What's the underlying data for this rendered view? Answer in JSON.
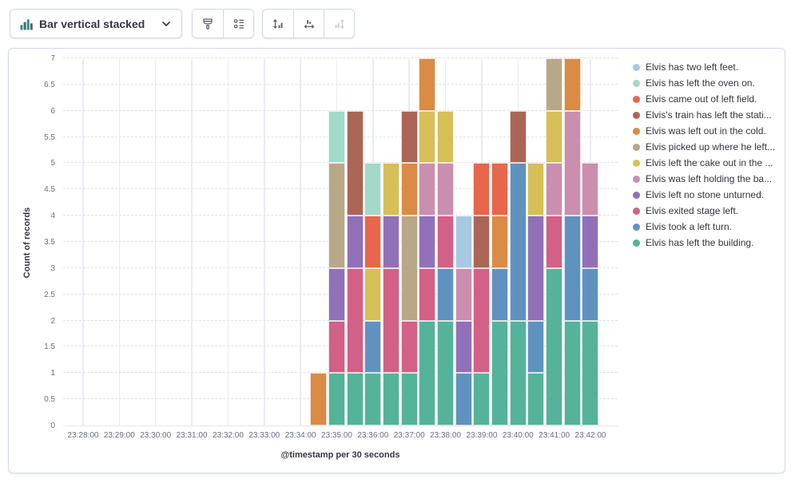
{
  "toolbar": {
    "chart_type_label": "Bar vertical stacked",
    "buttons": {
      "visual_options": "Visual options",
      "legend_settings": "Legend",
      "left_axis": "Left axis",
      "bottom_axis": "Bottom axis",
      "right_axis": "Right axis"
    }
  },
  "chart_data": {
    "type": "bar",
    "stacked": true,
    "xlabel": "@timestamp per 30 seconds",
    "ylabel": "Count of records",
    "ylim": [
      0,
      7
    ],
    "grid": true,
    "legend_position": "right",
    "y_ticks": [
      "0",
      "0.5",
      "1",
      "1.5",
      "2",
      "2.5",
      "3",
      "3.5",
      "4",
      "4.5",
      "5",
      "5.5",
      "6",
      "6.5",
      "7"
    ],
    "x_tick_labels": [
      "23:28:00",
      "23:29:00",
      "23:30:00",
      "23:31:00",
      "23:32:00",
      "23:33:00",
      "23:34:00",
      "23:35:00",
      "23:36:00",
      "23:37:00",
      "23:38:00",
      "23:39:00",
      "23:40:00",
      "23:41:00",
      "23:42:00"
    ],
    "buckets": [
      "23:34:30",
      "23:35:00",
      "23:35:30",
      "23:36:00",
      "23:36:30",
      "23:37:00",
      "23:37:30",
      "23:38:00",
      "23:38:30",
      "23:39:00",
      "23:39:30",
      "23:40:00",
      "23:40:30",
      "23:41:00",
      "23:41:30",
      "23:42:00"
    ],
    "series": [
      {
        "name": "Elvis has two left feet.",
        "color": "#A8C9E2",
        "values": [
          0,
          0,
          0,
          0,
          0,
          0,
          0,
          0,
          1,
          0,
          0,
          0,
          0,
          0,
          0,
          0
        ]
      },
      {
        "name": "Elvis has left the oven on.",
        "color": "#A2D9C8",
        "values": [
          0,
          1,
          0,
          1,
          0,
          0,
          0,
          0,
          0,
          0,
          0,
          0,
          0,
          0,
          0,
          0
        ]
      },
      {
        "name": "Elvis came out of left field.",
        "color": "#E7664C",
        "values": [
          0,
          0,
          0,
          1,
          0,
          0,
          0,
          0,
          0,
          1,
          1,
          0,
          0,
          0,
          0,
          0
        ]
      },
      {
        "name": "Elvis's train has left the stati...",
        "color": "#AA6556",
        "values": [
          0,
          0,
          2,
          0,
          0,
          1,
          0,
          0,
          0,
          1,
          0,
          1,
          0,
          0,
          0,
          0
        ]
      },
      {
        "name": "Elvis was left out in the cold.",
        "color": "#DA8B45",
        "values": [
          1,
          0,
          0,
          0,
          0,
          1,
          1,
          0,
          0,
          0,
          1,
          0,
          0,
          0,
          1,
          0
        ]
      },
      {
        "name": "Elvis picked up where he left...",
        "color": "#B9A888",
        "values": [
          0,
          2,
          0,
          0,
          0,
          2,
          0,
          0,
          0,
          0,
          0,
          0,
          0,
          1,
          0,
          0
        ]
      },
      {
        "name": "Elvis left the cake out in the ...",
        "color": "#D6BF57",
        "values": [
          0,
          0,
          0,
          1,
          1,
          0,
          1,
          1,
          0,
          0,
          0,
          0,
          1,
          1,
          0,
          0
        ]
      },
      {
        "name": "Elvis was left holding the ba...",
        "color": "#CA8EAE",
        "values": [
          0,
          0,
          0,
          0,
          0,
          0,
          1,
          1,
          1,
          0,
          0,
          0,
          0,
          1,
          2,
          1
        ]
      },
      {
        "name": "Elvis left no stone unturned.",
        "color": "#9170B8",
        "values": [
          0,
          1,
          1,
          0,
          1,
          0,
          1,
          0,
          1,
          0,
          0,
          0,
          2,
          0,
          0,
          1
        ]
      },
      {
        "name": "Elvis exited stage left.",
        "color": "#D36086",
        "values": [
          0,
          1,
          2,
          0,
          2,
          1,
          1,
          1,
          0,
          2,
          0,
          0,
          0,
          1,
          0,
          0
        ]
      },
      {
        "name": "Elvis took a left turn.",
        "color": "#6092C0",
        "values": [
          0,
          0,
          0,
          1,
          0,
          0,
          0,
          1,
          1,
          0,
          1,
          3,
          1,
          0,
          2,
          1
        ]
      },
      {
        "name": "Elvis has left the building.",
        "color": "#54B399",
        "values": [
          0,
          1,
          1,
          1,
          1,
          1,
          2,
          2,
          0,
          1,
          2,
          2,
          1,
          3,
          2,
          2
        ]
      }
    ]
  }
}
